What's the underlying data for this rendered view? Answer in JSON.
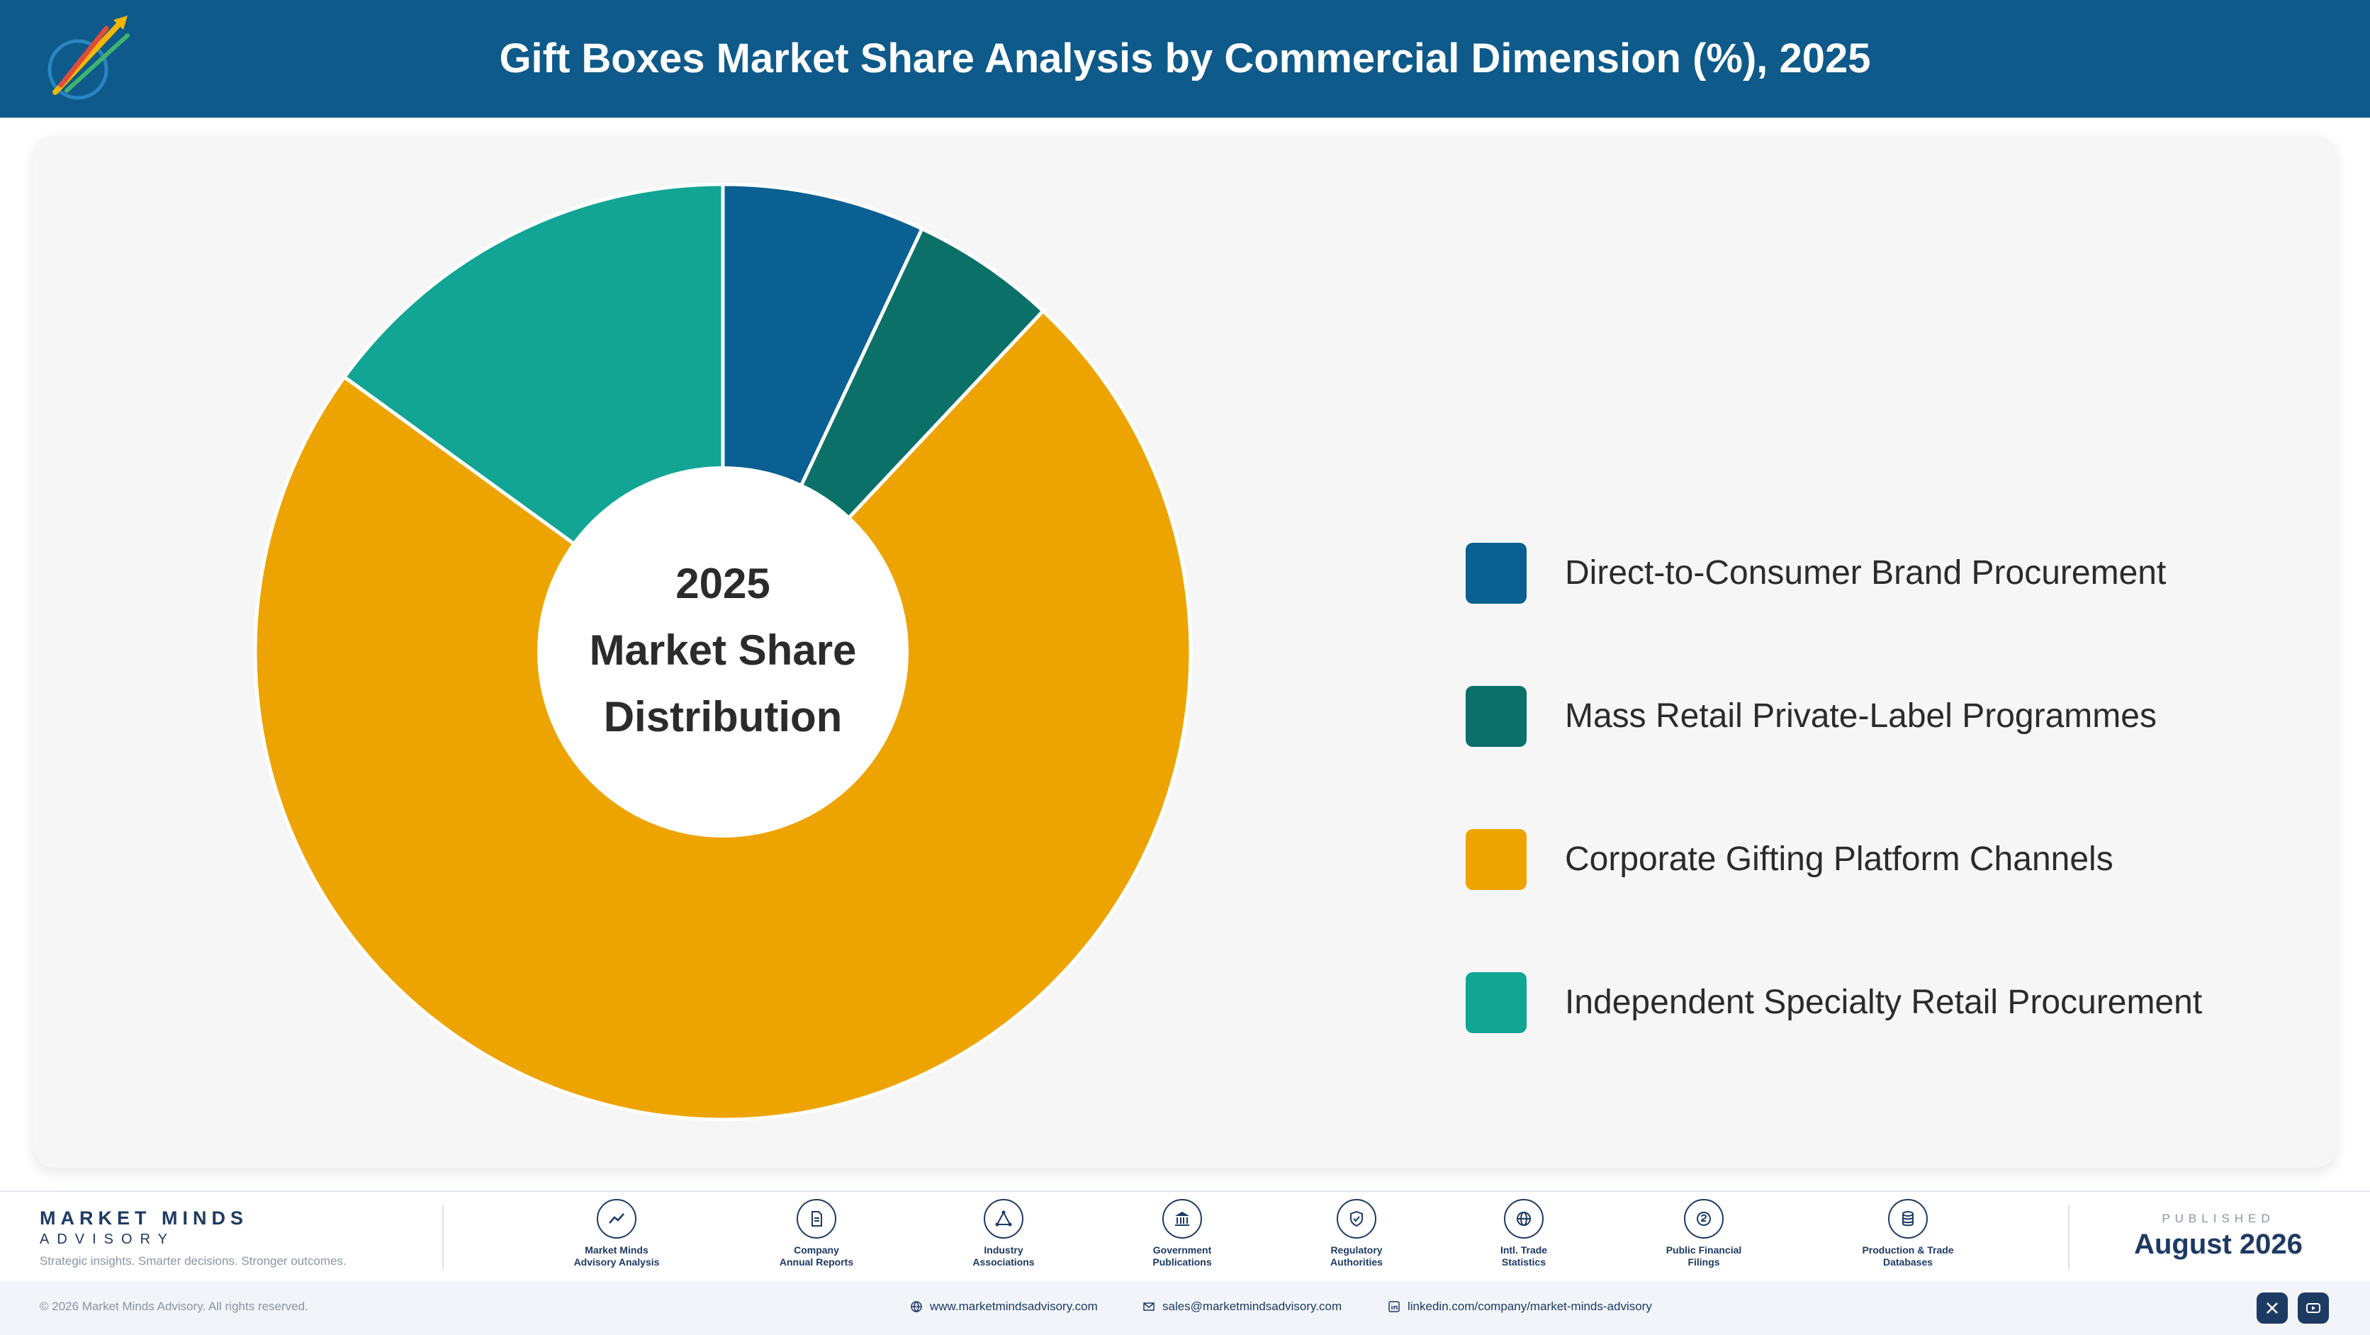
{
  "header": {
    "title": "Gift Boxes Market Share Analysis by Commercial Dimension (%), 2025",
    "logo_icon": "market-minds-logo-icon",
    "background_color": "#0e5a8a"
  },
  "chart_data": {
    "type": "pie",
    "donut": true,
    "center_label": [
      "2025",
      "Market Share",
      "Distribution"
    ],
    "categories": [
      "Direct-to-Consumer Brand Procurement",
      "Mass Retail Private-Label Programmes",
      "Corporate Gifting Platform Channels",
      "Independent Specialty Retail Procurement"
    ],
    "values": [
      7,
      5,
      73,
      15
    ],
    "colors": [
      "#0a6092",
      "#0b7068",
      "#eea400",
      "#12a594"
    ],
    "start_angle_deg": 0,
    "direction": "clockwise",
    "legend_position": "right"
  },
  "footer": {
    "brand_name": "MARKET MINDS",
    "brand_sub": "ADVISORY",
    "tagline": "Strategic insights. Smarter decisions. Stronger outcomes.",
    "sources": [
      {
        "icon": "trend-line-icon",
        "line1": "Market Minds",
        "line2": "Advisory Analysis"
      },
      {
        "icon": "document-icon",
        "line1": "Company",
        "line2": "Annual Reports"
      },
      {
        "icon": "network-icon",
        "line1": "Industry",
        "line2": "Associations"
      },
      {
        "icon": "government-building-icon",
        "line1": "Government",
        "line2": "Publications"
      },
      {
        "icon": "shield-check-icon",
        "line1": "Regulatory",
        "line2": "Authorities"
      },
      {
        "icon": "globe-icon",
        "line1": "Intl. Trade",
        "line2": "Statistics"
      },
      {
        "icon": "coin-icon",
        "line1": "Public Financial",
        "line2": "Filings"
      },
      {
        "icon": "database-icon",
        "line1": "Production & Trade",
        "line2": "Databases"
      }
    ],
    "published_label": "PUBLISHED",
    "published_date": "August 2026",
    "copyright": "© 2026 Market Minds Advisory. All rights reserved.",
    "website": "www.marketmindsadvisory.com",
    "email": "sales@marketmindsadvisory.com",
    "linkedin": "linkedin.com/company/market-minds-advisory",
    "social_icons": [
      "x-icon",
      "youtube-icon"
    ]
  }
}
